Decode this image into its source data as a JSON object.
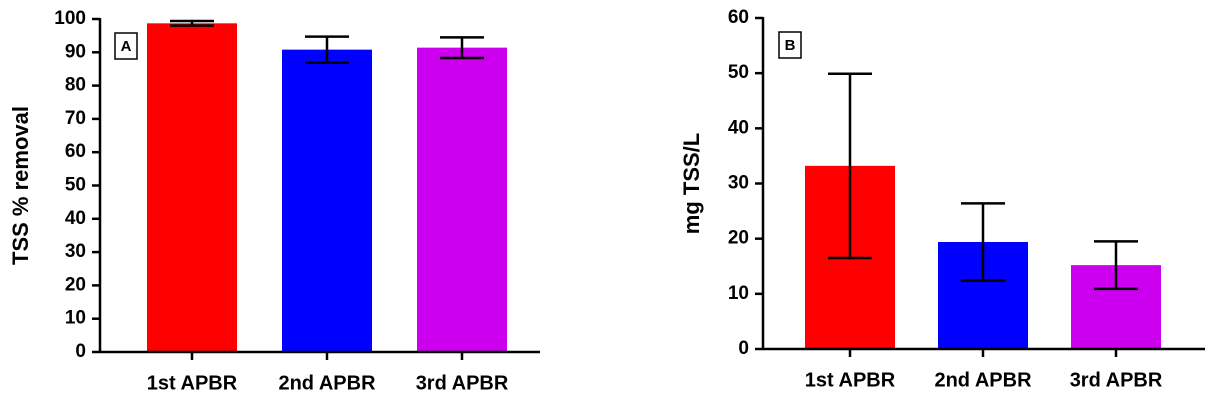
{
  "chart_data": [
    {
      "type": "bar",
      "panel_label": "A",
      "ylabel": "TSS % removal",
      "categories": [
        "1st APBR",
        "2nd APBR",
        "3rd APBR"
      ],
      "values": [
        98.7,
        90.8,
        91.4
      ],
      "errors": [
        0.7,
        3.9,
        3.1
      ],
      "colors": [
        "#ff0000",
        "#0000ff",
        "#cc00ee"
      ],
      "ylim": [
        0,
        100
      ],
      "yticks": [
        0,
        10,
        20,
        30,
        40,
        50,
        60,
        70,
        80,
        90,
        100
      ]
    },
    {
      "type": "bar",
      "panel_label": "B",
      "ylabel": "mg TSS/L",
      "categories": [
        "1st APBR",
        "2nd APBR",
        "3rd APBR"
      ],
      "values": [
        33.2,
        19.4,
        15.2
      ],
      "errors": [
        16.7,
        7,
        4.3
      ],
      "colors": [
        "#ff0000",
        "#0000ff",
        "#cc00ee"
      ],
      "ylim": [
        0,
        60
      ],
      "yticks": [
        0,
        10,
        20,
        30,
        40,
        50,
        60
      ]
    }
  ]
}
